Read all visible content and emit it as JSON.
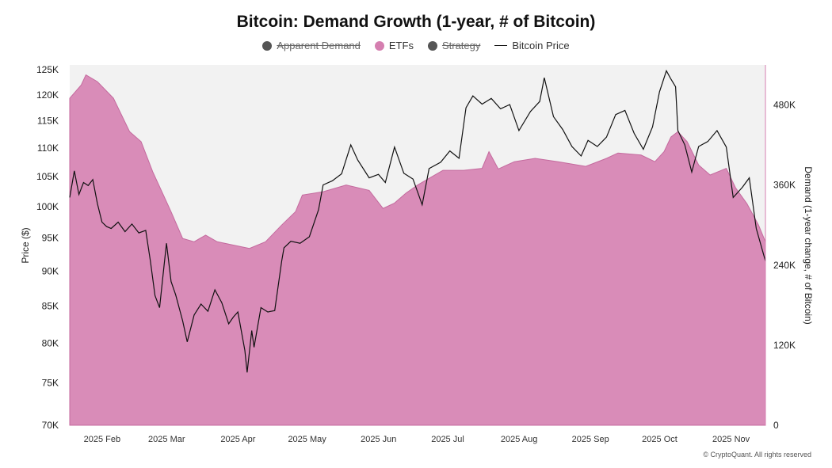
{
  "chart_data": {
    "type": "area",
    "title": "Bitcoin: Demand Growth (1-year, # of Bitcoin)",
    "legend": [
      {
        "name": "Apparent Demand",
        "color": "#555555",
        "disabled": true,
        "marker": "dot"
      },
      {
        "name": "ETFs",
        "color": "#d57fb0",
        "disabled": false,
        "marker": "dot"
      },
      {
        "name": "Strategy",
        "color": "#555555",
        "disabled": true,
        "marker": "dot"
      },
      {
        "name": "Bitcoin Price",
        "color": "#111111",
        "disabled": false,
        "marker": "line"
      }
    ],
    "legend_position": "top-center",
    "y_left_label": "Price ($)",
    "y_right_label": "Demand (1-year change, # of Bitcoin)",
    "y_left_ticks": [
      "70K",
      "75K",
      "80K",
      "85K",
      "90K",
      "95K",
      "100K",
      "105K",
      "110K",
      "115K",
      "120K",
      "125K"
    ],
    "y_left_values": [
      70000,
      75000,
      80000,
      85000,
      90000,
      95000,
      100000,
      105000,
      110000,
      115000,
      120000,
      125000
    ],
    "y_left_scale": "log",
    "y_left_range": [
      70000,
      126000
    ],
    "y_right_ticks": [
      "0",
      "120K",
      "240K",
      "360K",
      "480K"
    ],
    "y_right_values": [
      0,
      120000,
      240000,
      360000,
      480000
    ],
    "y_right_range": [
      0,
      540000
    ],
    "x_range": [
      "2025-01-20",
      "2025-11-18"
    ],
    "x_ticks": [
      "2025 Feb",
      "2025 Mar",
      "2025 Apr",
      "2025 May",
      "2025 Jun",
      "2025 Jul",
      "2025 Aug",
      "2025 Sep",
      "2025 Oct",
      "2025 Nov"
    ],
    "x_tick_dates": [
      "2025-02-01",
      "2025-03-01",
      "2025-04-01",
      "2025-05-01",
      "2025-06-01",
      "2025-07-01",
      "2025-08-01",
      "2025-09-01",
      "2025-10-01",
      "2025-11-01"
    ],
    "etf_demand": {
      "name": "ETFs",
      "x": [
        "2025-01-20",
        "2025-01-25",
        "2025-01-27",
        "2025-02-01",
        "2025-02-08",
        "2025-02-15",
        "2025-02-20",
        "2025-02-25",
        "2025-03-01",
        "2025-03-05",
        "2025-03-10",
        "2025-03-15",
        "2025-03-20",
        "2025-03-25",
        "2025-04-01",
        "2025-04-08",
        "2025-04-15",
        "2025-04-22",
        "2025-04-28",
        "2025-05-01",
        "2025-05-10",
        "2025-05-20",
        "2025-05-30",
        "2025-06-05",
        "2025-06-10",
        "2025-06-15",
        "2025-06-20",
        "2025-06-25",
        "2025-07-01",
        "2025-07-10",
        "2025-07-18",
        "2025-07-21",
        "2025-07-25",
        "2025-08-01",
        "2025-08-10",
        "2025-08-20",
        "2025-09-01",
        "2025-09-10",
        "2025-09-15",
        "2025-09-25",
        "2025-10-01",
        "2025-10-05",
        "2025-10-08",
        "2025-10-11",
        "2025-10-15",
        "2025-10-20",
        "2025-10-25",
        "2025-11-01",
        "2025-11-05",
        "2025-11-10",
        "2025-11-15",
        "2025-11-18"
      ],
      "y": [
        490000,
        510000,
        525000,
        515000,
        490000,
        440000,
        425000,
        380000,
        350000,
        320000,
        280000,
        275000,
        285000,
        275000,
        270000,
        265000,
        275000,
        300000,
        320000,
        345000,
        350000,
        360000,
        352000,
        325000,
        333000,
        348000,
        360000,
        370000,
        382000,
        382000,
        385000,
        410000,
        384000,
        395000,
        400000,
        395000,
        388000,
        400000,
        408000,
        405000,
        395000,
        410000,
        432000,
        440000,
        425000,
        390000,
        375000,
        385000,
        356000,
        332000,
        300000,
        275000
      ]
    },
    "bitcoin_price": {
      "name": "Bitcoin Price",
      "x": [
        "2025-01-20",
        "2025-01-22",
        "2025-01-24",
        "2025-01-26",
        "2025-01-28",
        "2025-01-30",
        "2025-02-01",
        "2025-02-03",
        "2025-02-05",
        "2025-02-07",
        "2025-02-10",
        "2025-02-13",
        "2025-02-16",
        "2025-02-19",
        "2025-02-22",
        "2025-02-24",
        "2025-02-26",
        "2025-02-28",
        "2025-03-02",
        "2025-03-03",
        "2025-03-05",
        "2025-03-07",
        "2025-03-10",
        "2025-03-12",
        "2025-03-15",
        "2025-03-18",
        "2025-03-21",
        "2025-03-24",
        "2025-03-27",
        "2025-03-30",
        "2025-04-01",
        "2025-04-03",
        "2025-04-06",
        "2025-04-07",
        "2025-04-09",
        "2025-04-10",
        "2025-04-13",
        "2025-04-16",
        "2025-04-19",
        "2025-04-22",
        "2025-04-23",
        "2025-04-26",
        "2025-04-30",
        "2025-05-04",
        "2025-05-08",
        "2025-05-10",
        "2025-05-14",
        "2025-05-18",
        "2025-05-22",
        "2025-05-25",
        "2025-05-30",
        "2025-06-03",
        "2025-06-06",
        "2025-06-10",
        "2025-06-14",
        "2025-06-18",
        "2025-06-22",
        "2025-06-25",
        "2025-06-30",
        "2025-07-04",
        "2025-07-08",
        "2025-07-11",
        "2025-07-14",
        "2025-07-18",
        "2025-07-22",
        "2025-07-26",
        "2025-07-30",
        "2025-08-03",
        "2025-08-08",
        "2025-08-12",
        "2025-08-14",
        "2025-08-18",
        "2025-08-22",
        "2025-08-26",
        "2025-08-30",
        "2025-09-02",
        "2025-09-06",
        "2025-09-10",
        "2025-09-14",
        "2025-09-18",
        "2025-09-22",
        "2025-09-26",
        "2025-09-30",
        "2025-10-03",
        "2025-10-06",
        "2025-10-08",
        "2025-10-10",
        "2025-10-11",
        "2025-10-14",
        "2025-10-17",
        "2025-10-20",
        "2025-10-24",
        "2025-10-28",
        "2025-11-01",
        "2025-11-04",
        "2025-11-08",
        "2025-11-11",
        "2025-11-14",
        "2025-11-18"
      ],
      "y": [
        101500,
        106000,
        102000,
        104000,
        103500,
        104500,
        100500,
        97500,
        96800,
        96500,
        97500,
        96000,
        97200,
        95800,
        96200,
        91500,
        86500,
        84800,
        91000,
        94200,
        88500,
        86600,
        83000,
        80200,
        83800,
        85300,
        84300,
        87300,
        85500,
        82600,
        83500,
        84200,
        79100,
        76300,
        81700,
        79500,
        84800,
        84200,
        84400,
        91500,
        93500,
        94500,
        94200,
        95200,
        99500,
        103600,
        104300,
        105500,
        110600,
        107900,
        104800,
        105400,
        104000,
        110200,
        105600,
        104600,
        100300,
        106400,
        107500,
        109500,
        108200,
        117500,
        119800,
        118200,
        119300,
        117300,
        118100,
        113200,
        116800,
        118700,
        123400,
        115800,
        113400,
        110300,
        108600,
        111400,
        110300,
        112000,
        116200,
        117000,
        112700,
        109800,
        113900,
        120600,
        124800,
        123100,
        121600,
        113200,
        110600,
        105800,
        110300,
        111200,
        113200,
        110200,
        101500,
        103200,
        104800,
        96500,
        91500
      ]
    }
  },
  "watermark": "CryptoQuant",
  "copyright": "© CryptoQuant. All rights reserved"
}
